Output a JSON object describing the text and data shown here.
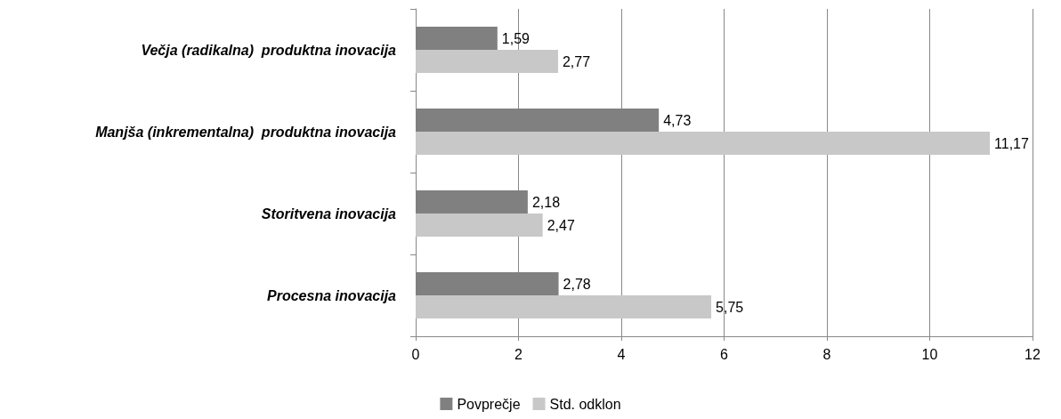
{
  "chart_data": {
    "type": "bar",
    "orientation": "horizontal",
    "categories": [
      "Večja (radikalna)  produktna inovacija",
      "Manjša (inkrementalna)  produktna inovacija",
      "Storitvena inovacija",
      "Procesna inovacija"
    ],
    "series": [
      {
        "name": "Povprečje",
        "color": "#808080",
        "values": [
          1.59,
          4.73,
          2.18,
          2.78
        ],
        "value_labels": [
          "1,59",
          "4,73",
          "2,18",
          "2,78"
        ]
      },
      {
        "name": "Std. odklon",
        "color": "#c8c8c8",
        "values": [
          2.77,
          11.17,
          2.47,
          5.75
        ],
        "value_labels": [
          "2,77",
          "11,17",
          "2,47",
          "5,75"
        ]
      }
    ],
    "xlim": [
      0,
      12
    ],
    "xticks": [
      0,
      2,
      4,
      6,
      8,
      10,
      12
    ],
    "grid": "x",
    "legend": "bottom"
  }
}
